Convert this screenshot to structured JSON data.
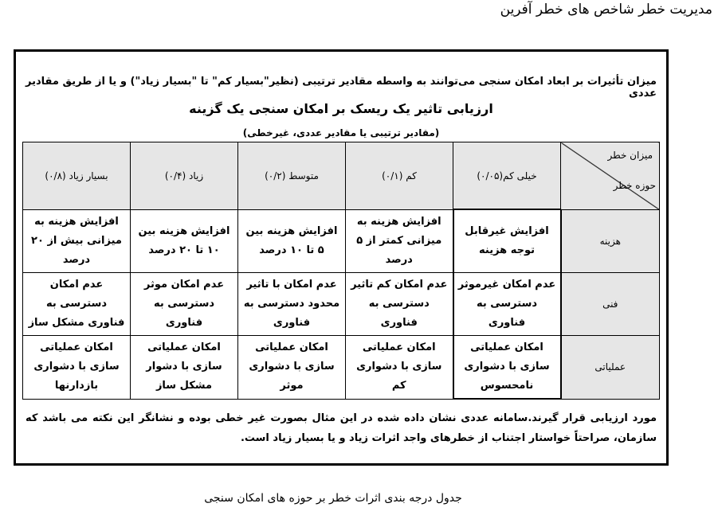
{
  "page_title": "مدیریت خطر شاخص های خطر آفرین",
  "intro_text": "میزان تأثیرات بر ابعاد امکان سنجی می‌توانند به واسطه مقادیر ترتیبی (نظیر\"بسیار کم\" تا \"بسیار زیاد\") و یا از طریق مقادیر عددی",
  "heading": "ارزیابی تاثیر یک ریسک بر امکان سنجی یک گزینه",
  "subheading": "(مقادیر ترتیبی یا مقادیر عددی، غیرخطی)",
  "table": {
    "corner_top": "میزان خطر",
    "corner_bottom": "حوزه خطر",
    "columns": [
      "خیلی کم(۰/۰۵)",
      "کم (۰/۱)",
      "متوسط (۰/۲)",
      "زیاد (۰/۴)",
      "بسیار زیاد (۰/۸)"
    ],
    "rows": [
      {
        "domain": "هزینه",
        "cells": [
          "افزایش غیرقابل توجه هزینه",
          "افزایش هزینه به میزانی کمتر از ۵ درصد",
          "افزایش هزینه بین ۵ تا ۱۰ درصد",
          "افزایش هزینه بین ۱۰ تا ۲۰ درصد",
          "افزایش هزینه به میزانی بیش از ۲۰ درصد"
        ]
      },
      {
        "domain": "فنی",
        "cells": [
          "عدم امکان غیرموثر دسترسی به فناوری",
          "عدم امکان کم تاثیر دسترسی به فناوری",
          "عدم امکان با تاثیر محدود دسترسی به فناوری",
          "عدم امکان موثر دسترسی به فناوری",
          "عدم امکان دسترسی به فناوری مشکل ساز"
        ]
      },
      {
        "domain": "عملیاتی",
        "cells": [
          "امکان عملیاتی سازی با دشواری نامحسوس",
          "امکان عملیاتی سازی با دشواری کم",
          "امکان عملیاتی سازی با دشواری موثر",
          "امکان عملیاتی سازی با دشوار مشکل ساز",
          "امکان عملیاتی سازی با دشواری بازدارنها"
        ]
      }
    ]
  },
  "conclusion_text": "مورد ارزیابی قرار گیرند.سامانه عددی نشان داده شده در این مثال بصورت غیر خطی بوده و نشانگر این نکته می باشد که سازمان، صراحتاً خواستار اجتناب از خطرهای واجد اثرات زیاد و یا بسیار زیاد است.",
  "caption": "جدول درجه بندی اثرات خطر بر حوزه های امکان سنجی"
}
